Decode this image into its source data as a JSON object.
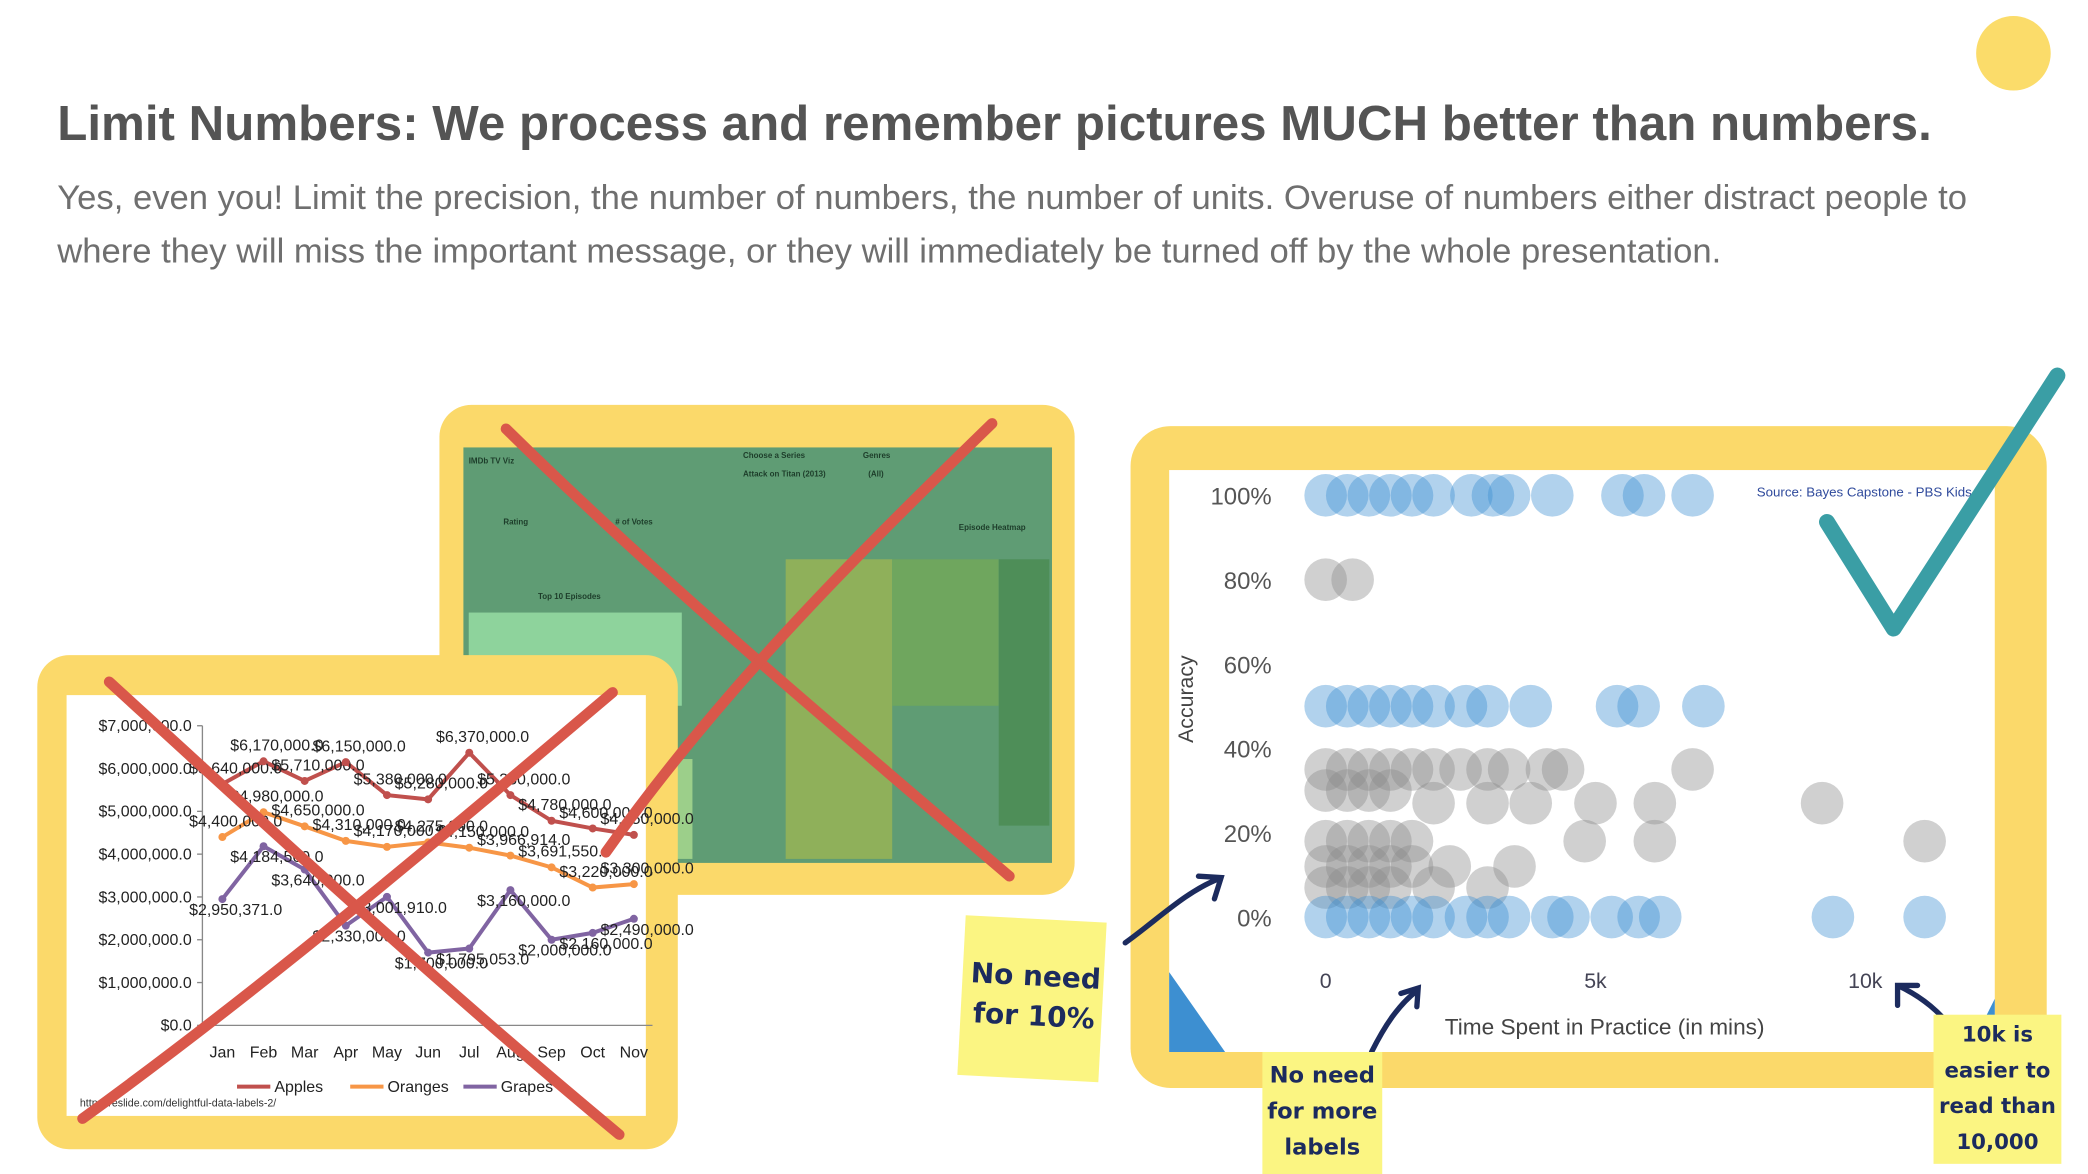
{
  "header": {
    "title": "Limit Numbers: We process and remember pictures MUCH better than numbers.",
    "body": "Yes, even you! Limit the precision, the number of numbers, the number of units. Overuse of numbers either distract people to where they will miss the important message, or they will immediately be turned off by the whole presentation."
  },
  "dashboard": {
    "texts": [
      "IMDb TV Viz",
      "Choose a Series",
      "Genres",
      "Attack on Titan (2013)",
      "(All)",
      "Rating",
      "# of Votes",
      "Top 10 Episodes",
      "Episode Heatmap"
    ]
  },
  "chart_data": [
    {
      "type": "line",
      "categories": [
        "Jan",
        "Feb",
        "Mar",
        "Apr",
        "May",
        "Jun",
        "Jul",
        "Aug",
        "Sep",
        "Oct",
        "Nov"
      ],
      "series": [
        {
          "name": "Apples",
          "color": "#c0504d",
          "values": [
            5640000,
            6170000,
            5710000,
            6150000,
            5380000,
            5280000,
            6370000,
            5380000,
            4780000,
            4600000,
            4450000
          ],
          "value_labels": [
            "$5,640,000.0",
            "$6,170,000.0",
            "$5,710,000.0",
            "$6,150,000.0",
            "$5,380,000.0",
            "$5,280,000.0",
            "$6,370,000.0",
            "$5,380,000.0",
            "$4,780,000.0",
            "$4,600,000.0",
            "$4,450,000.0"
          ]
        },
        {
          "name": "Oranges",
          "color": "#f79646",
          "values": [
            4400000,
            4980000,
            4650000,
            4310000,
            4170000,
            4275000,
            4150000,
            3966914,
            3691550,
            3220000,
            3300000
          ],
          "value_labels": [
            "$4,400,000.0",
            "$4,980,000.0",
            "$4,650,000.0",
            "$4,310,000.0",
            "$4,170,000.0",
            "$4,275,000.0",
            "$4,150,000.0",
            "$3,966,914.0",
            "$3,691,550.0",
            "$3,220,000.0",
            "$3,300,000.0"
          ]
        },
        {
          "name": "Grapes",
          "color": "#8064a2",
          "values": [
            2950371,
            4184560,
            3640000,
            2330000,
            3001910,
            1700000,
            1795053,
            3160000,
            2000000,
            2160000,
            2490000
          ],
          "value_labels": [
            "$2,950,371.0",
            "$4,184,560.0",
            "$3,640,000.0",
            "$2,330,000.0",
            "$3,001,910.0",
            "$1,700,000.0",
            "$1,795,053.0",
            "$3,160,000.0",
            "$2,000,000.0",
            "$2,160,000.0",
            "$2,490,000.0"
          ]
        }
      ],
      "ylim": [
        0,
        7000000
      ],
      "yticks": [
        {
          "value": 0,
          "label": "$0.0"
        },
        {
          "value": 1000000,
          "label": "$1,000,000.0"
        },
        {
          "value": 2000000,
          "label": "$2,000,000.0"
        },
        {
          "value": 3000000,
          "label": "$3,000,000.0"
        },
        {
          "value": 4000000,
          "label": "$4,000,000.0"
        },
        {
          "value": 5000000,
          "label": "$5,000,000.0"
        },
        {
          "value": 6000000,
          "label": "$6,000,000.0"
        },
        {
          "value": 7000000,
          "label": "$7,000,000.0"
        }
      ],
      "legend": "bottom",
      "source": "https://eslide.com/delightful-data-labels-2/"
    },
    {
      "type": "scatter",
      "source": "Source: Bayes Capstone - PBS Kids",
      "x_label": "Time Spent in Practice (in mins)",
      "y_label": "Accuracy",
      "xlim": [
        -2900,
        12400
      ],
      "ylim": [
        -32,
        106
      ],
      "xticks": [
        0,
        {
          "value": 5000,
          "label": "5k"
        },
        {
          "value": 10000,
          "label": "10k"
        }
      ],
      "yticks": [
        {
          "value": 0,
          "label": "0%"
        },
        {
          "value": 20,
          "label": "20%"
        },
        {
          "value": 40,
          "label": "40%"
        },
        {
          "value": 60,
          "label": "60%"
        },
        {
          "value": 80,
          "label": "80%"
        },
        {
          "value": 100,
          "label": "100%"
        }
      ],
      "series": [
        {
          "color": "#8a8a8a",
          "x": [
            0,
            500,
            0,
            400,
            800,
            1200,
            1600,
            2000,
            2500,
            3000,
            3400,
            4100,
            4400,
            6800,
            0,
            400,
            800,
            1200,
            2000,
            3000,
            3800,
            5000,
            6100,
            9200,
            0,
            400,
            800,
            1200,
            1600,
            4800,
            6100,
            11100,
            0,
            400,
            800,
            1200,
            1600,
            2300,
            3500,
            0,
            400,
            800,
            1200,
            2000,
            3000
          ],
          "values": [
            80,
            80,
            35,
            35,
            35,
            35,
            35,
            35,
            35,
            35,
            35,
            35,
            35,
            35,
            30,
            30,
            30,
            30,
            27,
            27,
            27,
            27,
            27,
            27,
            18,
            18,
            18,
            18,
            18,
            18,
            18,
            18,
            12,
            12,
            12,
            12,
            12,
            12,
            12,
            7,
            7,
            7,
            7,
            7,
            7
          ]
        },
        {
          "color": "#3d8fd1",
          "x": [
            0,
            400,
            800,
            1200,
            1600,
            2000,
            2700,
            3100,
            3400,
            4200,
            5500,
            5900,
            6800,
            0,
            400,
            800,
            1200,
            1600,
            2000,
            2600,
            3000,
            3800,
            5400,
            5800,
            7000,
            0,
            400,
            800,
            1200,
            1600,
            2000,
            2600,
            3000,
            3400,
            4200,
            4500,
            5300,
            5800,
            6200,
            9400,
            11100
          ],
          "values": [
            100,
            100,
            100,
            100,
            100,
            100,
            100,
            100,
            100,
            100,
            100,
            100,
            100,
            50,
            50,
            50,
            50,
            50,
            50,
            50,
            50,
            50,
            50,
            50,
            50,
            0,
            0,
            0,
            0,
            0,
            0,
            0,
            0,
            0,
            0,
            0,
            0,
            0,
            0,
            0,
            0
          ]
        }
      ]
    }
  ],
  "notes": [
    {
      "lines": [
        "No need",
        "for 10%"
      ]
    },
    {
      "lines": [
        "No need",
        "for more",
        "labels"
      ]
    },
    {
      "lines": [
        "10k is",
        "easier to",
        "read than",
        "10,000"
      ]
    }
  ]
}
